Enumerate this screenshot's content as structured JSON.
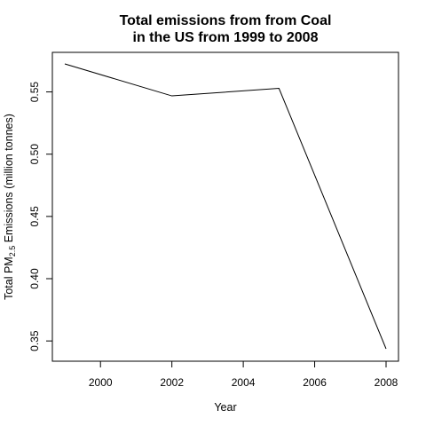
{
  "chart_data": {
    "type": "line",
    "title_lines": [
      "Total emissions from from Coal",
      "in the US from 1999 to 2008"
    ],
    "xlabel": "Year",
    "ylabel": {
      "prefix": "Total PM",
      "subscript": "2.5",
      "suffix": " Emissions (million tonnes)"
    },
    "x": [
      1999,
      2002,
      2005,
      2008
    ],
    "series": [
      {
        "values": [
          0.5725,
          0.5468,
          0.5529,
          0.3437
        ]
      }
    ],
    "xlim": [
      1999,
      2008
    ],
    "ylim": [
      0.3437,
      0.5725
    ],
    "x_ticks": [
      2000,
      2002,
      2004,
      2006,
      2008
    ],
    "x_tick_labels": [
      "2000",
      "2002",
      "2004",
      "2006",
      "2008"
    ],
    "y_ticks": [
      0.35,
      0.4,
      0.45,
      0.5,
      0.55
    ],
    "y_tick_labels": [
      "0.35",
      "0.40",
      "0.45",
      "0.50",
      "0.55"
    ],
    "line_color": "#000000",
    "grid": false,
    "legend": "none"
  }
}
